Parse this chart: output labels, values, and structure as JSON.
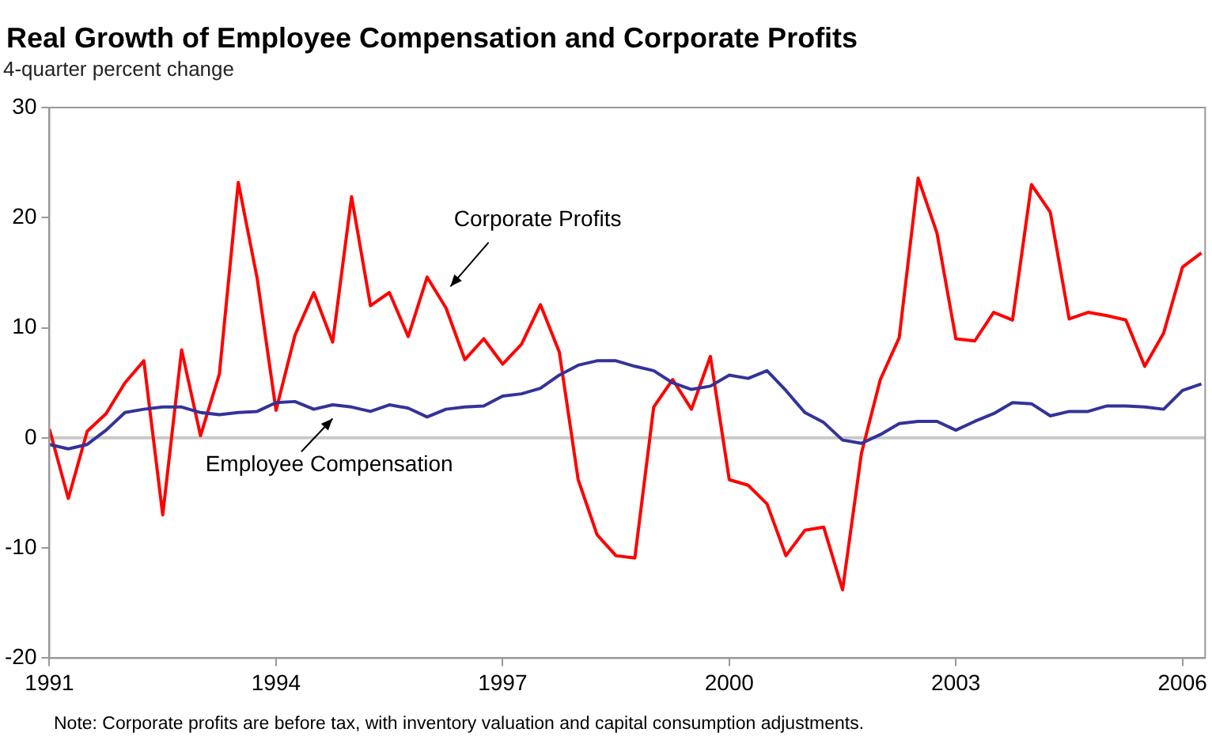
{
  "chart_data": {
    "type": "line",
    "title": "Real Growth of Employee Compensation and Corporate Profits",
    "subtitle": "4-quarter percent change",
    "x": [
      1991,
      1991.25,
      1991.5,
      1991.75,
      1992,
      1992.25,
      1992.5,
      1992.75,
      1993,
      1993.25,
      1993.5,
      1993.75,
      1994,
      1994.25,
      1994.5,
      1994.75,
      1995,
      1995.25,
      1995.5,
      1995.75,
      1996,
      1996.25,
      1996.5,
      1996.75,
      1997,
      1997.25,
      1997.5,
      1997.75,
      1998,
      1998.25,
      1998.5,
      1998.75,
      1999,
      1999.25,
      1999.5,
      1999.75,
      2000,
      2000.25,
      2000.5,
      2000.75,
      2001,
      2001.25,
      2001.5,
      2001.75,
      2002,
      2002.25,
      2002.5,
      2002.75,
      2003,
      2003.25,
      2003.5,
      2003.75,
      2004,
      2004.25,
      2004.5,
      2004.75,
      2005,
      2005.25,
      2005.5,
      2005.75,
      2006,
      2006.25
    ],
    "series": [
      {
        "name": "Employee Compensation",
        "color": "#333399",
        "values": [
          -0.6,
          -1.0,
          -0.6,
          0.7,
          2.3,
          2.6,
          2.8,
          2.8,
          2.3,
          2.1,
          2.3,
          2.4,
          3.2,
          3.3,
          2.6,
          3.0,
          2.8,
          2.4,
          3.0,
          2.7,
          1.9,
          2.6,
          2.8,
          2.9,
          3.8,
          4.0,
          4.5,
          5.7,
          6.6,
          7.0,
          7.0,
          6.5,
          6.1,
          5.0,
          4.4,
          4.7,
          5.7,
          5.4,
          6.1,
          4.3,
          2.3,
          1.4,
          -0.2,
          -0.5,
          0.3,
          1.3,
          1.5,
          1.5,
          0.7,
          1.5,
          2.2,
          3.2,
          3.1,
          2.0,
          2.4,
          2.4,
          2.9,
          2.9,
          2.8,
          2.6,
          4.3,
          4.9
        ]
      },
      {
        "name": "Corporate Profits",
        "color": "#ff0000",
        "values": [
          0.8,
          -5.5,
          0.6,
          2.2,
          5,
          7,
          -7,
          8,
          0.2,
          5.8,
          23.2,
          14.5,
          2.5,
          9.3,
          13.2,
          8.7,
          21.9,
          12,
          13.2,
          9.2,
          14.6,
          11.8,
          7.1,
          9.0,
          6.7,
          8.5,
          12.1,
          7.8,
          -3.8,
          -8.8,
          -10.7,
          -10.9,
          2.8,
          5.3,
          2.6,
          7.4,
          -3.8,
          -4.3,
          -6.0,
          -10.7,
          -8.4,
          -8.1,
          -13.8,
          -1.4,
          5.3,
          9.1,
          23.6,
          18.6,
          9.0,
          8.8,
          11.4,
          10.7,
          23.0,
          20.5,
          10.8,
          11.4,
          11.1,
          10.7,
          6.5,
          9.5,
          15.5,
          16.8
        ]
      }
    ],
    "xlim": [
      1991,
      2006.3
    ],
    "xticks": [
      1991,
      1994,
      1997,
      2000,
      2003,
      2006
    ],
    "ylim": [
      -20,
      30
    ],
    "yticks": [
      -20,
      -10,
      0,
      10,
      20,
      30
    ],
    "ref_lines": [
      {
        "axis": "y",
        "value": 0,
        "color": "#c8c8c8"
      }
    ],
    "grid": false,
    "legend": false,
    "marker": "none",
    "line_style": "solid",
    "annotations": [
      "Note:  Corporate profits are before tax, with inventory valuation and capital consumption adjustments."
    ]
  }
}
